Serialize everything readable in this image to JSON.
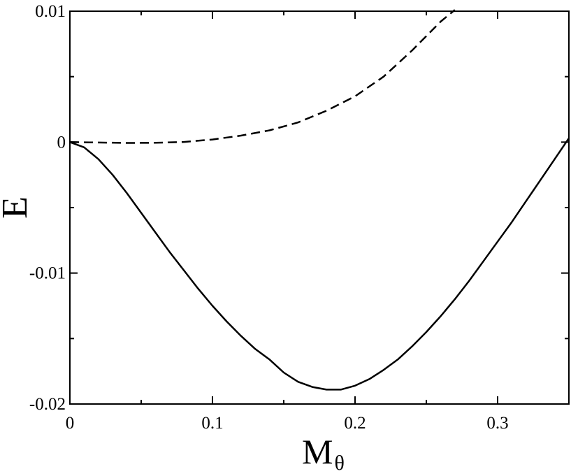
{
  "chart_data": {
    "type": "line",
    "xlabel": "M",
    "xlabel_subscript": "θ",
    "ylabel": "E",
    "xlim": [
      0,
      0.35
    ],
    "ylim": [
      -0.02,
      0.01
    ],
    "xticks": [
      0,
      0.1,
      0.2,
      0.3
    ],
    "xtick_labels": [
      "0",
      "0.1",
      "0.2",
      "0.3"
    ],
    "yticks": [
      -0.02,
      -0.01,
      0,
      0.01
    ],
    "ytick_labels": [
      "-0.02",
      "-0.01",
      "0",
      "0.01"
    ],
    "grid": false,
    "series": [
      {
        "style": "solid",
        "color": "#000000",
        "x": [
          0,
          0.01,
          0.02,
          0.03,
          0.04,
          0.05,
          0.06,
          0.07,
          0.08,
          0.09,
          0.1,
          0.11,
          0.12,
          0.13,
          0.14,
          0.15,
          0.16,
          0.17,
          0.18,
          0.19,
          0.2,
          0.21,
          0.22,
          0.23,
          0.24,
          0.25,
          0.26,
          0.27,
          0.28,
          0.29,
          0.3,
          0.31,
          0.32,
          0.33,
          0.34,
          0.35
        ],
        "y": [
          0,
          -0.0004,
          -0.0013,
          -0.0025,
          -0.0039,
          -0.0054,
          -0.0069,
          -0.0084,
          -0.0098,
          -0.0112,
          -0.0125,
          -0.0137,
          -0.0148,
          -0.0158,
          -0.0166,
          -0.0176,
          -0.0183,
          -0.0187,
          -0.0189,
          -0.0189,
          -0.0186,
          -0.0181,
          -0.0174,
          -0.0166,
          -0.0156,
          -0.0145,
          -0.0133,
          -0.012,
          -0.0106,
          -0.0091,
          -0.0076,
          -0.0061,
          -0.0045,
          -0.0029,
          -0.0013,
          0.0003
        ]
      },
      {
        "style": "dashed",
        "color": "#000000",
        "x": [
          0,
          0.02,
          0.04,
          0.06,
          0.08,
          0.1,
          0.12,
          0.14,
          0.16,
          0.18,
          0.2,
          0.22,
          0.24,
          0.26,
          0.27
        ],
        "y": [
          0,
          -3e-05,
          -6e-05,
          -5e-05,
          1e-05,
          0.0002,
          0.0005,
          0.0009,
          0.0015,
          0.0024,
          0.0035,
          0.005,
          0.007,
          0.0092,
          0.0101
        ]
      }
    ]
  }
}
